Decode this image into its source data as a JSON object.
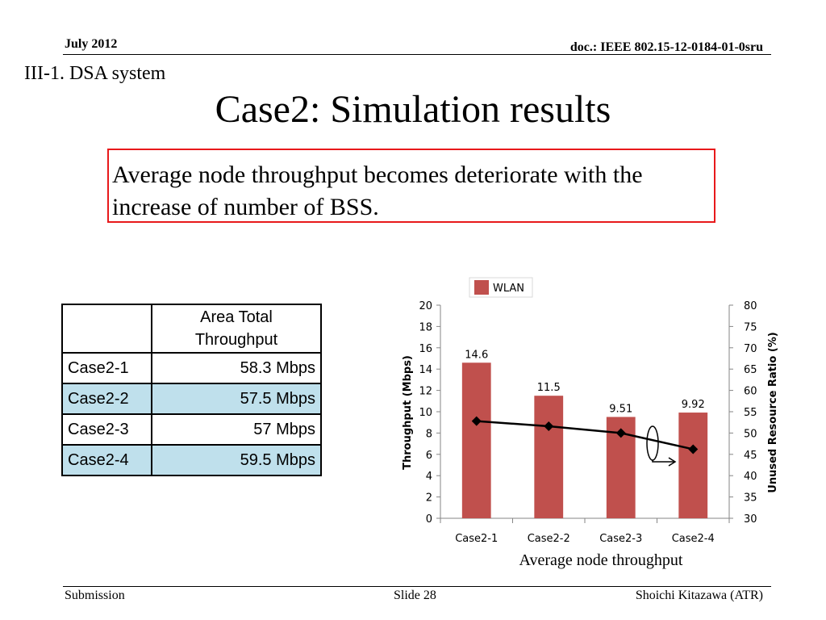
{
  "header": {
    "date": "July 2012",
    "doc": "doc.: IEEE 802.15-12-0184-01-0sru"
  },
  "section": "III-1. DSA system",
  "title": "Case2: Simulation results",
  "callout": "Average node throughput becomes deteriorate with the increase of number of BSS.",
  "table": {
    "header_label": "Area Total Throughput",
    "rows": [
      {
        "case": "Case2-1",
        "value": "58.3 Mbps"
      },
      {
        "case": "Case2-2",
        "value": "57.5 Mbps"
      },
      {
        "case": "Case2-3",
        "value": "57 Mbps"
      },
      {
        "case": "Case2-4",
        "value": "59.5 Mbps"
      }
    ],
    "shade_color": "#bfe0ec"
  },
  "chart_data": {
    "type": "bar",
    "categories": [
      "Case2-1",
      "Case2-2",
      "Case2-3",
      "Case2-4"
    ],
    "series": [
      {
        "name": "WLAN",
        "type": "bar",
        "axis": "left",
        "values": [
          14.6,
          11.5,
          9.51,
          9.92
        ],
        "labels": [
          "14.6",
          "11.5",
          "9.51",
          "9.92"
        ],
        "color": "#c0504d"
      },
      {
        "type": "line",
        "axis": "right",
        "values": [
          52.8,
          51.6,
          50.0,
          46.2
        ],
        "color": "#000000",
        "marker": "diamond"
      }
    ],
    "ylabel": "Throughput  (Mbps)",
    "y2label": "Unused Resource Ratio (%)",
    "ylim": [
      0,
      20
    ],
    "y2lim": [
      30,
      80
    ],
    "yticks": [
      "0",
      "2",
      "4",
      "6",
      "8",
      "10",
      "12",
      "14",
      "16",
      "18",
      "20"
    ],
    "y2ticks": [
      "30",
      "35",
      "40",
      "45",
      "50",
      "55",
      "60",
      "65",
      "70",
      "75",
      "80"
    ],
    "legend": "top",
    "grid": false,
    "caption": "Average node throughput"
  },
  "footer": {
    "left": "Submission",
    "center": "Slide 28",
    "right": "Shoichi Kitazawa (ATR)"
  }
}
